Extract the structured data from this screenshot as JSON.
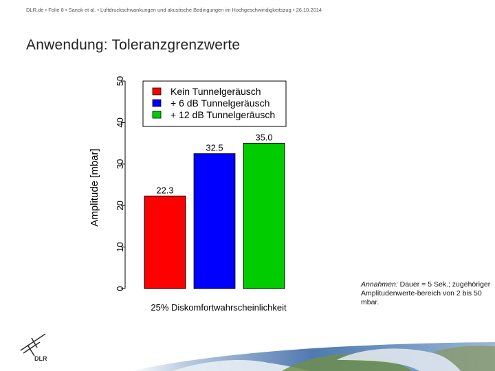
{
  "header": {
    "site": "DLR.de",
    "slide": "Folie 8",
    "authors": "Sanok et al.",
    "topic": "Luftdruckschwankungen und akustische Bedingungen im Hochgeschwindigkeitszug",
    "date": "26.10.2014",
    "separator": "•"
  },
  "slide_title": "Anwendung: Toleranzgrenzwerte",
  "note": {
    "label": "Annahmen:",
    "text": " Dauer = 5 Sek.; zugehöriger Amplitudenwerte-bereich von 2 bis 50 mbar."
  },
  "logo_text": "DLR",
  "chart_data": {
    "type": "bar",
    "categories": [
      "Kein Tunnelgeräusch",
      "+ 6 dB Tunnelgeräusch",
      "+ 12 dB Tunnelgeräusch"
    ],
    "values": [
      22.3,
      32.5,
      35.0
    ],
    "value_labels": [
      "22.3",
      "32.5",
      "35.0"
    ],
    "colors": [
      "#ff0000",
      "#0000ff",
      "#00cc00"
    ],
    "ylabel": "Amplitude [mbar]",
    "xlabel": "25% Diskomfortwahrscheinlichkeit",
    "ylim": [
      0,
      50
    ],
    "yticks": [
      0,
      10,
      20,
      30,
      40,
      50
    ],
    "legend": {
      "placement": "top-left",
      "entries": [
        "Kein Tunnelgeräusch",
        "+ 6 dB Tunnelgeräusch",
        "+ 12 dB Tunnelgeräusch"
      ]
    },
    "grid": false
  }
}
